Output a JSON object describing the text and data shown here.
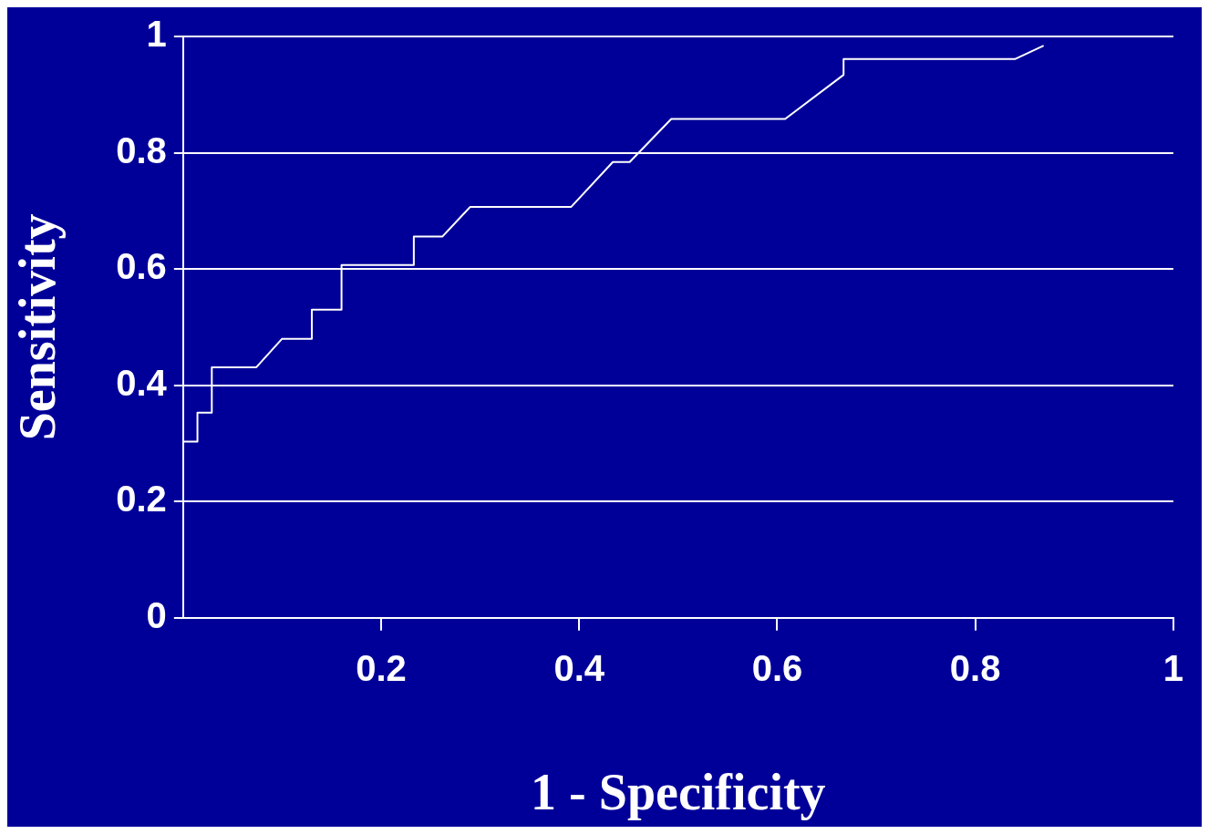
{
  "chart_data": {
    "type": "line",
    "xlabel": "1 - Specificity",
    "ylabel": "Sensitivity",
    "x": [
      0,
      0.0145,
      0.0145,
      0.029,
      0.029,
      0.074,
      0.1,
      0.13,
      0.13,
      0.16,
      0.16,
      0.233,
      0.233,
      0.262,
      0.29,
      0.392,
      0.434,
      0.451,
      0.493,
      0.608,
      0.667,
      0.667,
      0.84,
      0.869
    ],
    "series": [
      {
        "color": "#ffffff",
        "values": [
          0.303,
          0.303,
          0.353,
          0.353,
          0.431,
          0.431,
          0.48,
          0.48,
          0.53,
          0.53,
          0.607,
          0.607,
          0.656,
          0.656,
          0.707,
          0.707,
          0.784,
          0.784,
          0.858,
          0.858,
          0.934,
          0.961,
          0.961,
          0.984
        ]
      }
    ],
    "xlim": [
      0,
      1
    ],
    "xticks": [
      0.2,
      0.4,
      0.6,
      0.8,
      1
    ],
    "ylim": [
      0,
      1
    ],
    "yticks": [
      0,
      0.2,
      0.4,
      0.6,
      0.8,
      1
    ],
    "grid": "y",
    "legend": false,
    "marker": "none",
    "line_style": "solid"
  }
}
